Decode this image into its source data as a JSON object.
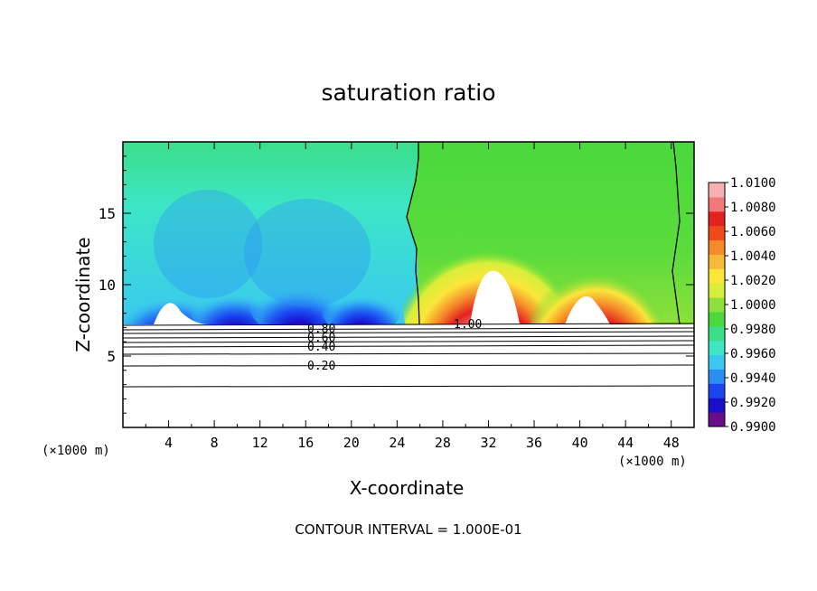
{
  "chart_data": {
    "type": "heatmap",
    "title": "saturation ratio",
    "xlabel": "X-coordinate",
    "ylabel": "Z-coordinate",
    "x_unit_label": "(×1000 m)",
    "xlim": [
      0,
      50
    ],
    "ylim": [
      0,
      20
    ],
    "x_ticks": [
      4,
      8,
      12,
      16,
      20,
      24,
      28,
      32,
      36,
      40,
      44,
      48
    ],
    "y_ticks": [
      5,
      10,
      15
    ],
    "colorbar": {
      "min": 0.99,
      "max": 1.01,
      "tick_labels": [
        "1.0100",
        "1.0080",
        "1.0060",
        "1.0040",
        "1.0020",
        "1.0000",
        "0.9980",
        "0.9960",
        "0.9940",
        "0.9920",
        "0.9900"
      ],
      "colors": [
        "#6a0d8a",
        "#1a0dcc",
        "#1a45f0",
        "#2a8ff5",
        "#3ac8f0",
        "#3ce6c6",
        "#3cde8a",
        "#4ad83c",
        "#8ee03a",
        "#d8ee3a",
        "#fbe63a",
        "#f8b83a",
        "#f58a2a",
        "#ee4a1a",
        "#e42020",
        "#f07878",
        "#f6b0b0"
      ]
    },
    "contour_labels": [
      "0.80",
      "0.60",
      "0.40",
      "0.20",
      "1.00"
    ],
    "contour_interval_text": "CONTOUR INTERVAL = 1.000E-01",
    "colors": {
      "subsaturated_field": "#3ce6c6",
      "saturation_line_field": "#4ad83c",
      "supersaturated_peak": "#e42020",
      "contour_line": "#000000",
      "background": "#ffffff"
    }
  }
}
